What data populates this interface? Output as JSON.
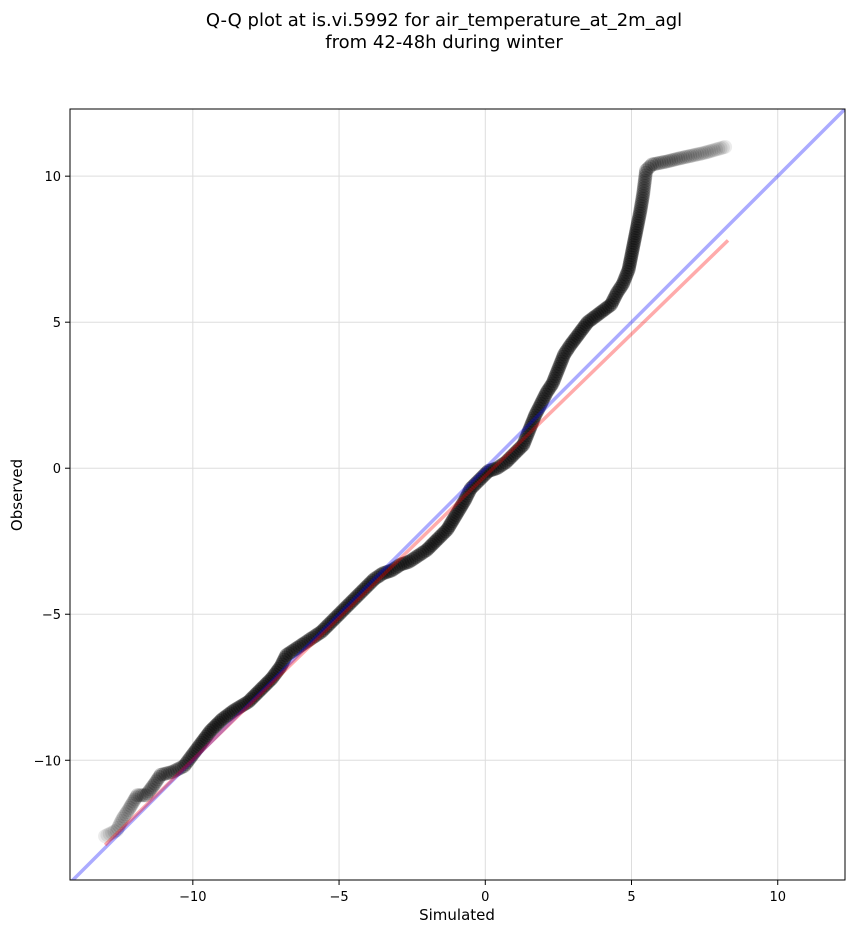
{
  "chart_data": {
    "type": "scatter",
    "title_lines": [
      "Q-Q plot at is.vi.5992 for air_temperature_at_2m_agl",
      "from 42-48h during winter"
    ],
    "xlabel": "Simulated",
    "ylabel": "Observed",
    "xlim": [
      -14.2,
      12.3
    ],
    "ylim": [
      -14.1,
      12.3
    ],
    "xticks": [
      -10,
      -5,
      0,
      5,
      10
    ],
    "yticks": [
      -10,
      -5,
      0,
      5,
      10
    ],
    "xtick_labels": [
      "−10",
      "−5",
      "0",
      "5",
      "10"
    ],
    "ytick_labels": [
      "−10",
      "−5",
      "0",
      "5",
      "10"
    ],
    "grid": true,
    "points": [
      [
        -13.0,
        -12.6
      ],
      [
        -12.6,
        -12.4
      ],
      [
        -12.4,
        -12.0
      ],
      [
        -12.2,
        -11.7
      ],
      [
        -11.9,
        -11.2
      ],
      [
        -11.6,
        -11.2
      ],
      [
        -11.3,
        -10.8
      ],
      [
        -11.1,
        -10.5
      ],
      [
        -10.7,
        -10.4
      ],
      [
        -10.3,
        -10.2
      ],
      [
        -10.0,
        -9.8
      ],
      [
        -9.7,
        -9.4
      ],
      [
        -9.4,
        -9.0
      ],
      [
        -9.0,
        -8.6
      ],
      [
        -8.6,
        -8.3
      ],
      [
        -8.1,
        -8.0
      ],
      [
        -7.7,
        -7.6
      ],
      [
        -7.3,
        -7.2
      ],
      [
        -7.0,
        -6.8
      ],
      [
        -6.8,
        -6.4
      ],
      [
        -6.5,
        -6.2
      ],
      [
        -6.2,
        -6.0
      ],
      [
        -5.9,
        -5.8
      ],
      [
        -5.6,
        -5.6
      ],
      [
        -5.3,
        -5.3
      ],
      [
        -5.0,
        -5.0
      ],
      [
        -4.7,
        -4.7
      ],
      [
        -4.4,
        -4.4
      ],
      [
        -4.1,
        -4.1
      ],
      [
        -3.8,
        -3.8
      ],
      [
        -3.5,
        -3.6
      ],
      [
        -3.2,
        -3.5
      ],
      [
        -2.9,
        -3.3
      ],
      [
        -2.6,
        -3.2
      ],
      [
        -2.3,
        -3.0
      ],
      [
        -2.0,
        -2.8
      ],
      [
        -1.6,
        -2.4
      ],
      [
        -1.3,
        -2.1
      ],
      [
        -1.0,
        -1.6
      ],
      [
        -0.7,
        -1.1
      ],
      [
        -0.5,
        -0.7
      ],
      [
        -0.2,
        -0.4
      ],
      [
        0.1,
        -0.1
      ],
      [
        0.4,
        0.0
      ],
      [
        0.7,
        0.2
      ],
      [
        1.0,
        0.5
      ],
      [
        1.3,
        0.8
      ],
      [
        1.5,
        1.3
      ],
      [
        1.7,
        1.8
      ],
      [
        1.9,
        2.2
      ],
      [
        2.1,
        2.6
      ],
      [
        2.3,
        2.9
      ],
      [
        2.5,
        3.4
      ],
      [
        2.7,
        3.9
      ],
      [
        2.9,
        4.2
      ],
      [
        3.2,
        4.6
      ],
      [
        3.5,
        5.0
      ],
      [
        3.9,
        5.3
      ],
      [
        4.3,
        5.6
      ],
      [
        4.5,
        6.0
      ],
      [
        4.7,
        6.3
      ],
      [
        4.9,
        6.8
      ],
      [
        5.0,
        7.3
      ],
      [
        5.1,
        7.8
      ],
      [
        5.2,
        8.3
      ],
      [
        5.3,
        8.8
      ],
      [
        5.4,
        9.4
      ],
      [
        5.5,
        10.2
      ],
      [
        5.7,
        10.4
      ],
      [
        6.2,
        10.5
      ],
      [
        6.6,
        10.6
      ],
      [
        7.5,
        10.8
      ],
      [
        8.2,
        11.0
      ]
    ],
    "line_blue": [
      [
        -14.2,
        -14.2
      ],
      [
        12.3,
        12.3
      ]
    ],
    "line_red": [
      [
        -13.0,
        -12.9
      ],
      [
        8.3,
        7.8
      ]
    ],
    "colors": {
      "points": "#000000",
      "line_blue": "#0000ff",
      "line_red": "#ff0000",
      "grid": "#dddddd",
      "axes": "#000000"
    }
  }
}
